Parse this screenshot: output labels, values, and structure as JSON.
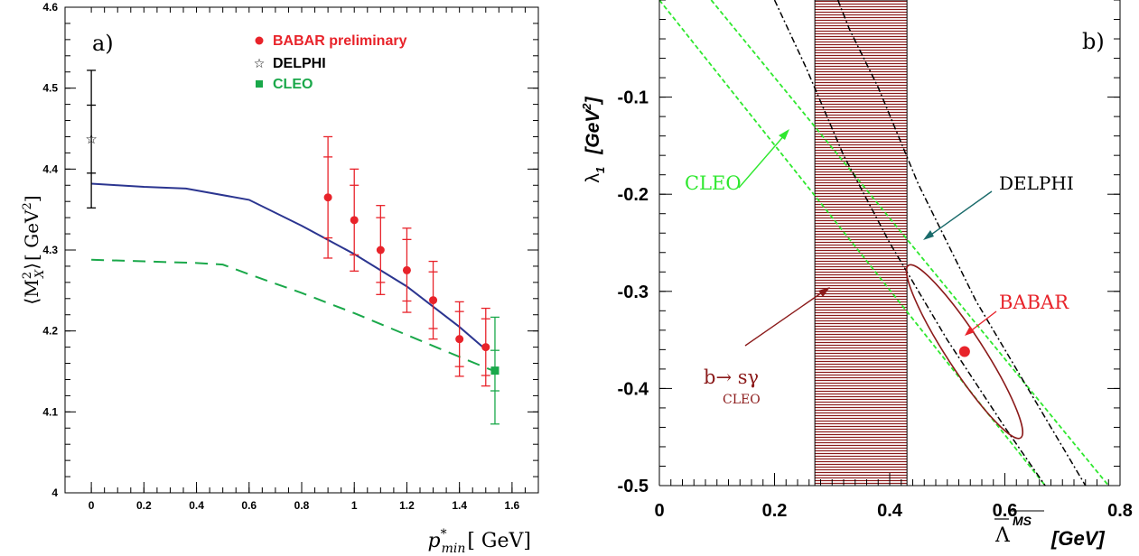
{
  "chart_data": [
    {
      "type": "scatter",
      "panel_label": "a)",
      "xlabel_main": "p",
      "xlabel_sup": "*",
      "xlabel_sub": "min",
      "xlabel_unit": "[ GeV]",
      "ylabel_main": "⟨M",
      "ylabel_sup": "2",
      "ylabel_sub": "X",
      "ylabel_close": "⟩",
      "ylabel_unit": "[ GeV",
      "ylabel_unit_sup": "2",
      "ylabel_unit_close": "]",
      "xlim": [
        -0.1,
        1.7
      ],
      "ylim": [
        4.0,
        4.6
      ],
      "xticks": [
        0,
        0.2,
        0.4,
        0.6,
        0.8,
        1,
        1.2,
        1.4,
        1.6
      ],
      "xtick_labels": [
        "0",
        "0.2",
        "0.4",
        "0.6",
        "0.8",
        "1",
        "1.2",
        "1.4",
        "1.6"
      ],
      "yticks": [
        4,
        4.1,
        4.2,
        4.3,
        4.4,
        4.5,
        4.6
      ],
      "ytick_labels": [
        "4",
        "4.1",
        "4.2",
        "4.3",
        "4.4",
        "4.5",
        "4.6"
      ],
      "legend": [
        "BABAR preliminary",
        "DELPHI",
        "CLEO"
      ],
      "series": [
        {
          "name": "BABAR preliminary",
          "color": "#e8232a",
          "marker": "circle",
          "points": [
            {
              "x": 0.9,
              "y": 4.365,
              "stat": 0.05,
              "tot": 0.075
            },
            {
              "x": 1.0,
              "y": 4.337,
              "stat": 0.043,
              "tot": 0.063
            },
            {
              "x": 1.1,
              "y": 4.3,
              "stat": 0.04,
              "tot": 0.055
            },
            {
              "x": 1.2,
              "y": 4.275,
              "stat": 0.038,
              "tot": 0.052
            },
            {
              "x": 1.3,
              "y": 4.238,
              "stat": 0.035,
              "tot": 0.048
            },
            {
              "x": 1.4,
              "y": 4.19,
              "stat": 0.034,
              "tot": 0.046
            },
            {
              "x": 1.5,
              "y": 4.18,
              "stat": 0.035,
              "tot": 0.048
            }
          ]
        },
        {
          "name": "DELPHI",
          "color": "#000000",
          "marker": "star",
          "points": [
            {
              "x": 0.0,
              "y": 4.437,
              "stat": 0.042,
              "tot": 0.085
            }
          ]
        },
        {
          "name": "CLEO",
          "color": "#1aa84a",
          "marker": "square",
          "points": [
            {
              "x": 1.535,
              "y": 4.151,
              "stat": 0.025,
              "tot": 0.066
            }
          ]
        }
      ],
      "curves": [
        {
          "style": "solid",
          "color": "#2b3590",
          "x": [
            0.0,
            0.1,
            0.2,
            0.36,
            0.6,
            0.8,
            1.0,
            1.2,
            1.4,
            1.5
          ],
          "y": [
            4.382,
            4.38,
            4.378,
            4.376,
            4.362,
            4.33,
            4.295,
            4.255,
            4.205,
            4.177
          ]
        },
        {
          "style": "dashed",
          "color": "#1aa84a",
          "x": [
            0.0,
            0.2,
            0.4,
            0.5,
            0.6,
            0.8,
            1.0,
            1.2,
            1.4,
            1.535
          ],
          "y": [
            4.288,
            4.286,
            4.284,
            4.282,
            4.27,
            4.247,
            4.222,
            4.195,
            4.168,
            4.15
          ]
        }
      ]
    },
    {
      "type": "contour",
      "panel_label": "b)",
      "xlabel_main": "Λ",
      "xlabel_sup": "MS",
      "xlabel_unit": "[GeV]",
      "ylabel_main": "λ",
      "ylabel_sub": "1",
      "ylabel_unit": "[GeV",
      "ylabel_unit_sup": "2",
      "ylabel_unit_close": "]",
      "xlim": [
        0,
        0.8
      ],
      "ylim": [
        -0.5,
        0.0
      ],
      "xticks": [
        0,
        0.2,
        0.4,
        0.6,
        0.8
      ],
      "xtick_labels": [
        "0",
        "0.2",
        "0.4",
        "0.6",
        "0.8"
      ],
      "yticks": [
        -0.1,
        -0.2,
        -0.3,
        -0.4,
        -0.5
      ],
      "ytick_labels": [
        "-0.1",
        "-0.2",
        "-0.3",
        "-0.4",
        "-0.5"
      ],
      "band": {
        "x0": 0.27,
        "x1": 0.43,
        "color": "#8b1a1a"
      },
      "babar_point": {
        "x": 0.53,
        "y": -0.362,
        "color": "#e8232a"
      },
      "babar_ellipse": {
        "cx": 0.53,
        "cy": -0.362,
        "color": "#8b1a1a"
      },
      "cleo_lines": [
        {
          "x": [
            0.0,
            0.67
          ],
          "y": [
            0.0,
            -0.5
          ]
        },
        {
          "x": [
            0.09,
            0.78
          ],
          "y": [
            0.0,
            -0.5
          ]
        }
      ],
      "delphi_lines": [
        {
          "x": [
            0.2,
            0.255,
            0.32,
            0.4,
            0.5,
            0.6,
            0.67
          ],
          "y": [
            0.0,
            -0.07,
            -0.16,
            -0.25,
            -0.35,
            -0.44,
            -0.5
          ]
        },
        {
          "x": [
            0.31,
            0.33,
            0.38,
            0.45,
            0.55,
            0.66,
            0.74
          ],
          "y": [
            0.0,
            -0.03,
            -0.09,
            -0.19,
            -0.31,
            -0.42,
            -0.5
          ]
        }
      ],
      "annotations": {
        "cleo": "CLEO",
        "delphi": "DELPHI",
        "babar": "BABAR",
        "bsg_main": "b→ sγ",
        "bsg_sub": "CLEO"
      }
    }
  ]
}
